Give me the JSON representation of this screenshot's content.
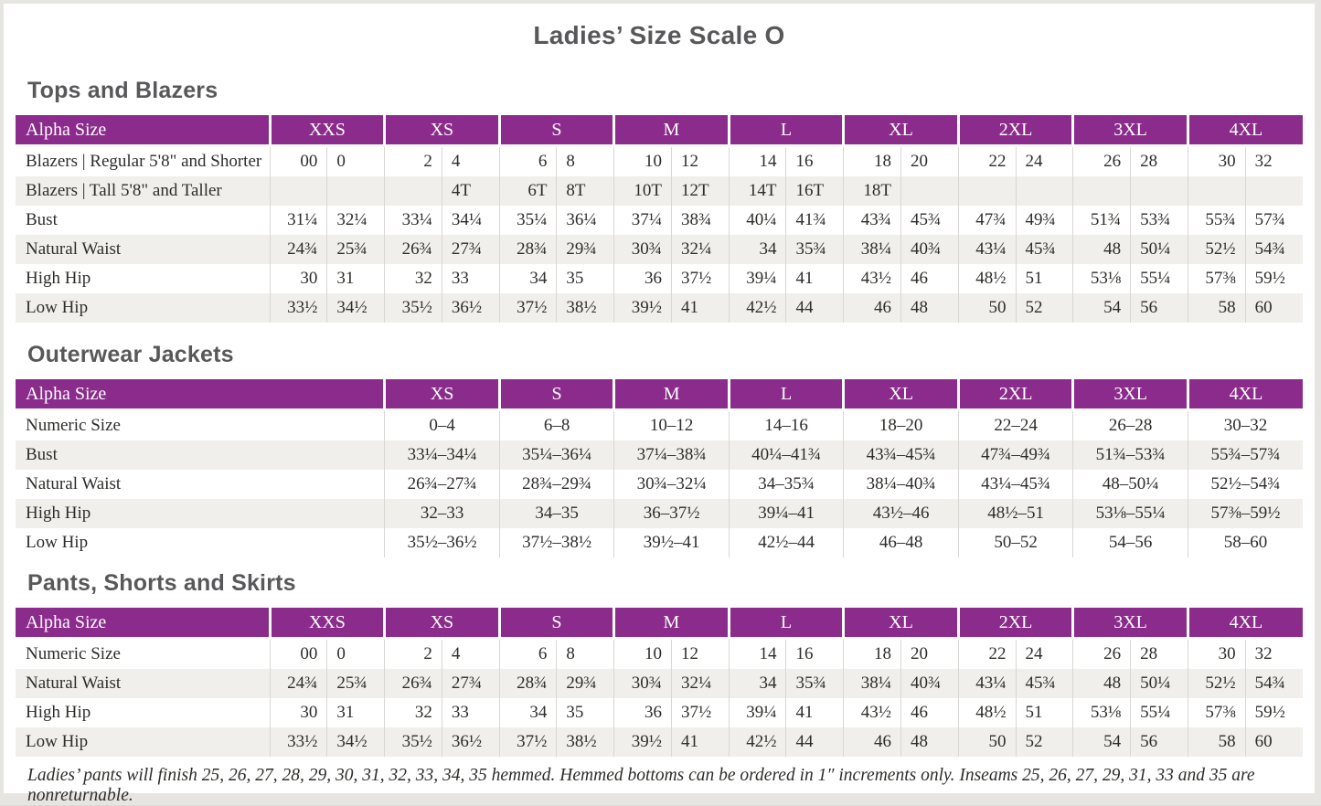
{
  "page": {
    "title": "Ladies’ Size Scale O"
  },
  "colors": {
    "header_purple": "#8b2c8c",
    "stripe": "#f1efec",
    "divider": "#d9d7d4",
    "frame": "#e7e5e2",
    "heading_text": "#58585a",
    "body_text": "#2e2d2b"
  },
  "footer_note": "Ladies’ pants will finish 25, 26, 27, 28, 29, 30, 31, 32, 33, 34, 35 hemmed. Hemmed bottoms can be ordered in 1″ increments only. Inseams 25, 26, 27, 29, 31, 33 and 35 are nonreturnable.",
  "tables": [
    {
      "section_title": "Tops and Blazers",
      "type": "paired",
      "header_label": "Alpha Size",
      "sizes": [
        "XXS",
        "XS",
        "S",
        "M",
        "L",
        "XL",
        "2XL",
        "3XL",
        "4XL"
      ],
      "rows": [
        {
          "label": "Blazers | Regular 5'8\" and Shorter",
          "values": [
            [
              "00",
              "0"
            ],
            [
              "2",
              "4"
            ],
            [
              "6",
              "8"
            ],
            [
              "10",
              "12"
            ],
            [
              "14",
              "16"
            ],
            [
              "18",
              "20"
            ],
            [
              "22",
              "24"
            ],
            [
              "26",
              "28"
            ],
            [
              "30",
              "32"
            ]
          ]
        },
        {
          "label": "Blazers | Tall 5'8\" and Taller",
          "values": [
            [
              "",
              ""
            ],
            [
              "",
              "4T"
            ],
            [
              "6T",
              "8T"
            ],
            [
              "10T",
              "12T"
            ],
            [
              "14T",
              "16T"
            ],
            [
              "18T",
              ""
            ],
            [
              "",
              ""
            ],
            [
              "",
              ""
            ],
            [
              "",
              ""
            ]
          ]
        },
        {
          "label": "Bust",
          "values": [
            [
              "31¼",
              "32¼"
            ],
            [
              "33¼",
              "34¼"
            ],
            [
              "35¼",
              "36¼"
            ],
            [
              "37¼",
              "38¾"
            ],
            [
              "40¼",
              "41¾"
            ],
            [
              "43¾",
              "45¾"
            ],
            [
              "47¾",
              "49¾"
            ],
            [
              "51¾",
              "53¾"
            ],
            [
              "55¾",
              "57¾"
            ]
          ]
        },
        {
          "label": "Natural Waist",
          "values": [
            [
              "24¾",
              "25¾"
            ],
            [
              "26¾",
              "27¾"
            ],
            [
              "28¾",
              "29¾"
            ],
            [
              "30¾",
              "32¼"
            ],
            [
              "34",
              "35¾"
            ],
            [
              "38¼",
              "40¾"
            ],
            [
              "43¼",
              "45¾"
            ],
            [
              "48",
              "50¼"
            ],
            [
              "52½",
              "54¾"
            ]
          ]
        },
        {
          "label": "High Hip",
          "values": [
            [
              "30",
              "31"
            ],
            [
              "32",
              "33"
            ],
            [
              "34",
              "35"
            ],
            [
              "36",
              "37½"
            ],
            [
              "39¼",
              "41"
            ],
            [
              "43½",
              "46"
            ],
            [
              "48½",
              "51"
            ],
            [
              "53⅛",
              "55¼"
            ],
            [
              "57⅜",
              "59½"
            ]
          ]
        },
        {
          "label": "Low Hip",
          "values": [
            [
              "33½",
              "34½"
            ],
            [
              "35½",
              "36½"
            ],
            [
              "37½",
              "38½"
            ],
            [
              "39½",
              "41"
            ],
            [
              "42½",
              "44"
            ],
            [
              "46",
              "48"
            ],
            [
              "50",
              "52"
            ],
            [
              "54",
              "56"
            ],
            [
              "58",
              "60"
            ]
          ]
        }
      ]
    },
    {
      "section_title": "Outerwear Jackets",
      "type": "single",
      "header_label": "Alpha Size",
      "sizes": [
        "XS",
        "S",
        "M",
        "L",
        "XL",
        "2XL",
        "3XL",
        "4XL"
      ],
      "rows": [
        {
          "label": "Numeric Size",
          "values": [
            "0–4",
            "6–8",
            "10–12",
            "14–16",
            "18–20",
            "22–24",
            "26–28",
            "30–32"
          ]
        },
        {
          "label": "Bust",
          "values": [
            "33¼–34¼",
            "35¼–36¼",
            "37¼–38¾",
            "40¼–41¾",
            "43¾–45¾",
            "47¾–49¾",
            "51¾–53¾",
            "55¾–57¾"
          ]
        },
        {
          "label": "Natural Waist",
          "values": [
            "26¾–27¾",
            "28¾–29¾",
            "30¾–32¼",
            "34–35¾",
            "38¼–40¾",
            "43¼–45¾",
            "48–50¼",
            "52½–54¾"
          ]
        },
        {
          "label": "High Hip",
          "values": [
            "32–33",
            "34–35",
            "36–37½",
            "39¼–41",
            "43½–46",
            "48½–51",
            "53⅛–55¼",
            "57⅜–59½"
          ]
        },
        {
          "label": "Low Hip",
          "values": [
            "35½–36½",
            "37½–38½",
            "39½–41",
            "42½–44",
            "46–48",
            "50–52",
            "54–56",
            "58–60"
          ]
        }
      ]
    },
    {
      "section_title": "Pants, Shorts and Skirts",
      "type": "paired",
      "header_label": "Alpha Size",
      "sizes": [
        "XXS",
        "XS",
        "S",
        "M",
        "L",
        "XL",
        "2XL",
        "3XL",
        "4XL"
      ],
      "rows": [
        {
          "label": "Numeric Size",
          "values": [
            [
              "00",
              "0"
            ],
            [
              "2",
              "4"
            ],
            [
              "6",
              "8"
            ],
            [
              "10",
              "12"
            ],
            [
              "14",
              "16"
            ],
            [
              "18",
              "20"
            ],
            [
              "22",
              "24"
            ],
            [
              "26",
              "28"
            ],
            [
              "30",
              "32"
            ]
          ]
        },
        {
          "label": "Natural Waist",
          "values": [
            [
              "24¾",
              "25¾"
            ],
            [
              "26¾",
              "27¾"
            ],
            [
              "28¾",
              "29¾"
            ],
            [
              "30¾",
              "32¼"
            ],
            [
              "34",
              "35¾"
            ],
            [
              "38¼",
              "40¾"
            ],
            [
              "43¼",
              "45¾"
            ],
            [
              "48",
              "50¼"
            ],
            [
              "52½",
              "54¾"
            ]
          ]
        },
        {
          "label": "High Hip",
          "values": [
            [
              "30",
              "31"
            ],
            [
              "32",
              "33"
            ],
            [
              "34",
              "35"
            ],
            [
              "36",
              "37½"
            ],
            [
              "39¼",
              "41"
            ],
            [
              "43½",
              "46"
            ],
            [
              "48½",
              "51"
            ],
            [
              "53⅛",
              "55¼"
            ],
            [
              "57⅜",
              "59½"
            ]
          ]
        },
        {
          "label": "Low Hip",
          "values": [
            [
              "33½",
              "34½"
            ],
            [
              "35½",
              "36½"
            ],
            [
              "37½",
              "38½"
            ],
            [
              "39½",
              "41"
            ],
            [
              "42½",
              "44"
            ],
            [
              "46",
              "48"
            ],
            [
              "50",
              "52"
            ],
            [
              "54",
              "56"
            ],
            [
              "58",
              "60"
            ]
          ]
        }
      ]
    }
  ]
}
